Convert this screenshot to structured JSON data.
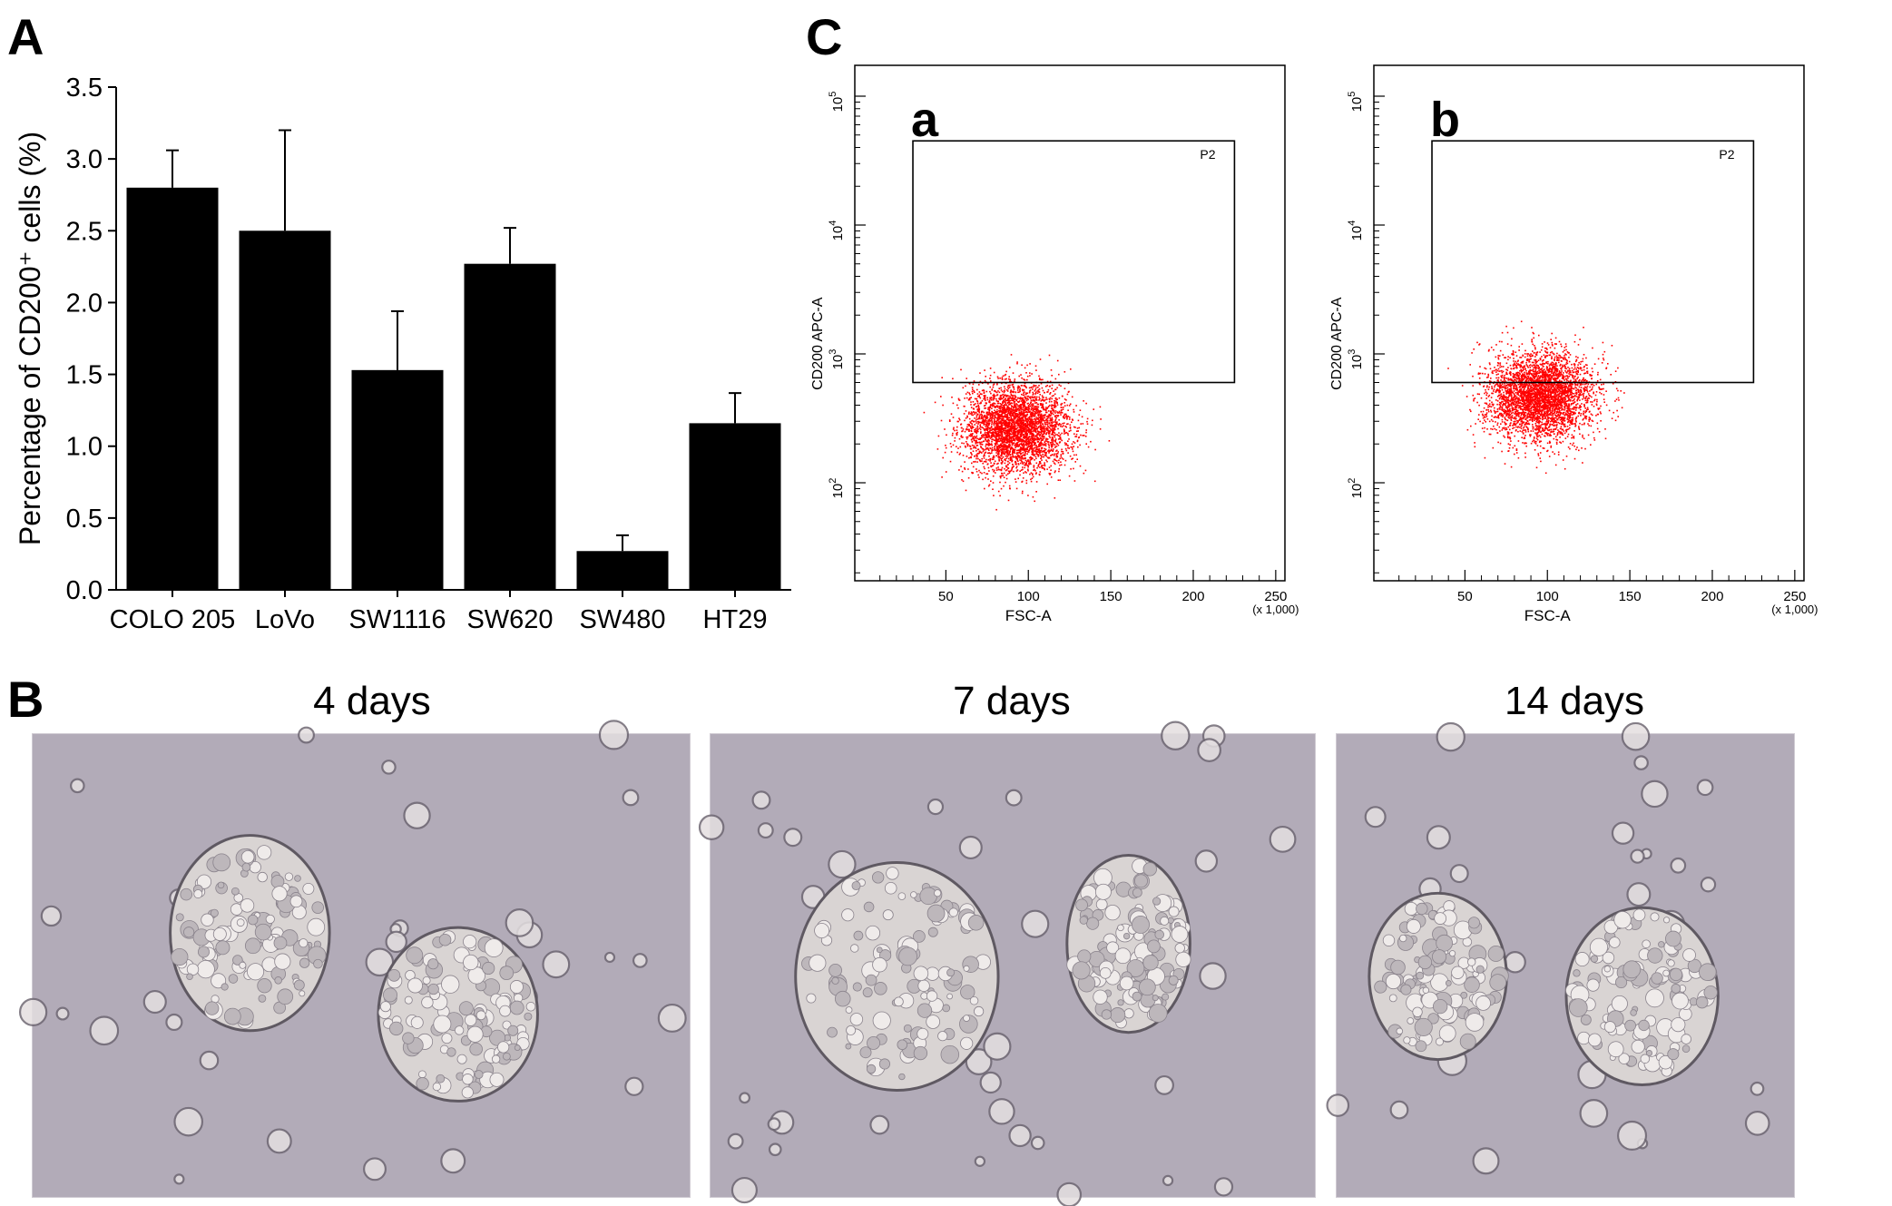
{
  "panels": {
    "A": "A",
    "B": "B",
    "C": "C"
  },
  "chart_data": [
    {
      "type": "bar",
      "title": "",
      "categories": [
        "COLO 205",
        "LoVo",
        "SW1116",
        "SW620",
        "SW480",
        "HT29"
      ],
      "values": [
        2.8,
        2.5,
        1.53,
        2.27,
        0.27,
        1.16
      ],
      "error_bars": [
        0.26,
        0.7,
        0.41,
        0.25,
        0.11,
        0.21
      ],
      "xlabel": "",
      "ylabel": "Percentage of CD200⁺ cells (%)",
      "ylim": [
        0,
        3.5
      ],
      "yticks": [
        "0.0",
        "0.5",
        "1.0",
        "1.5",
        "2.0",
        "2.5",
        "3.0",
        "3.5"
      ],
      "bar_color": "#000000",
      "grid": false
    },
    {
      "type": "scatter",
      "subpanel": "a",
      "xlabel": "FSC-A",
      "ylabel": "CD200 APC-A",
      "x_unit": "(x 1,000)",
      "xticks": [
        "50",
        "100",
        "150",
        "200",
        "250"
      ],
      "ytick_exponents": [
        "2",
        "3",
        "4",
        "5"
      ],
      "gate": "P2",
      "gate_x_range": [
        30,
        225
      ],
      "gate_y_range": [
        600,
        45000
      ],
      "cluster_center": {
        "x": 92,
        "y": 270
      },
      "point_color": "#ff0000"
    },
    {
      "type": "scatter",
      "subpanel": "b",
      "xlabel": "FSC-A",
      "ylabel": "CD200 APC-A",
      "x_unit": "(x 1,000)",
      "xticks": [
        "50",
        "100",
        "150",
        "200",
        "250"
      ],
      "ytick_exponents": [
        "2",
        "3",
        "4",
        "5"
      ],
      "gate": "P2",
      "gate_x_range": [
        30,
        225
      ],
      "gate_y_range": [
        600,
        45000
      ],
      "cluster_center": {
        "x": 95,
        "y": 480
      },
      "point_color": "#ff0000"
    }
  ],
  "micrographs": [
    {
      "label": "4 days"
    },
    {
      "label": "7 days"
    },
    {
      "label": "14 days"
    }
  ],
  "colors": {
    "micro_bg": "#b2abb8",
    "cell_fill": "#e4dfe0",
    "cell_edge": "#6f6873"
  }
}
